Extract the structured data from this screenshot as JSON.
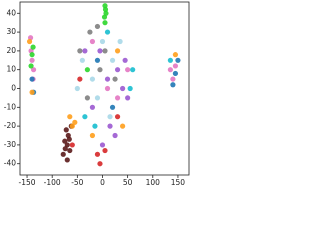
{
  "chart_data": {
    "type": "scatter",
    "xlim": [
      -164,
      172
    ],
    "ylim": [
      -46,
      46
    ],
    "xticks": [
      -150,
      -100,
      -50,
      0,
      50,
      100,
      150
    ],
    "yticks": [
      -40,
      -30,
      -20,
      -10,
      0,
      10,
      20,
      30,
      40
    ],
    "series": [
      {
        "color": "#e377c2",
        "x": [
          -142,
          -140,
          -138,
          -143,
          -137,
          135,
          140,
          145,
          -20,
          30,
          50,
          10
        ],
        "values": [
          20,
          15,
          5,
          27,
          10,
          10,
          5,
          12,
          25,
          -5,
          10,
          0
        ]
      },
      {
        "color": "#2bd62b",
        "x": [
          -140,
          -138,
          -142,
          5,
          6,
          4,
          5,
          7,
          -30
        ],
        "values": [
          18,
          22,
          12,
          44,
          42,
          38,
          35,
          40,
          10
        ]
      },
      {
        "color": "#1f77b4",
        "x": [
          -140,
          -137,
          145,
          150,
          140,
          20,
          -10
        ],
        "values": [
          5,
          -2,
          8,
          15,
          2,
          -10,
          15
        ]
      },
      {
        "color": "#5b1a1a",
        "x": [
          -70,
          -75,
          -65,
          -72,
          -68,
          -78,
          -62,
          -70,
          -74,
          -66
        ],
        "values": [
          -30,
          -28,
          -33,
          -22,
          -25,
          -35,
          -20,
          -38,
          -32,
          -27
        ]
      },
      {
        "color": "#ff9f1c",
        "x": [
          -140,
          -60,
          -55,
          -65,
          30,
          145,
          -20,
          40,
          -145
        ],
        "values": [
          -2,
          -20,
          -18,
          -15,
          20,
          18,
          -25,
          -20,
          25
        ]
      },
      {
        "color": "#9b59d0",
        "x": [
          -20,
          10,
          30,
          50,
          -35,
          15,
          45,
          0,
          25,
          40,
          -5
        ],
        "values": [
          -10,
          5,
          10,
          -5,
          20,
          -20,
          15,
          -30,
          -25,
          0,
          20
        ]
      },
      {
        "color": "#a8d8e8",
        "x": [
          -40,
          -20,
          0,
          20,
          -10,
          35,
          -50,
          15
        ],
        "values": [
          15,
          5,
          25,
          15,
          -5,
          25,
          0,
          -15
        ]
      },
      {
        "color": "#7f7f7f",
        "x": [
          -45,
          -25,
          5,
          -5,
          -30,
          25,
          -10
        ],
        "values": [
          20,
          30,
          20,
          10,
          -5,
          5,
          33
        ]
      },
      {
        "color": "#17becf",
        "x": [
          -35,
          55,
          10,
          -15,
          60,
          135
        ],
        "values": [
          -15,
          0,
          30,
          -20,
          10,
          15
        ]
      },
      {
        "color": "#d62728",
        "x": [
          -10,
          -5,
          5,
          -60,
          30,
          -45
        ],
        "values": [
          -35,
          -40,
          -33,
          -30,
          -15,
          5
        ]
      }
    ]
  }
}
